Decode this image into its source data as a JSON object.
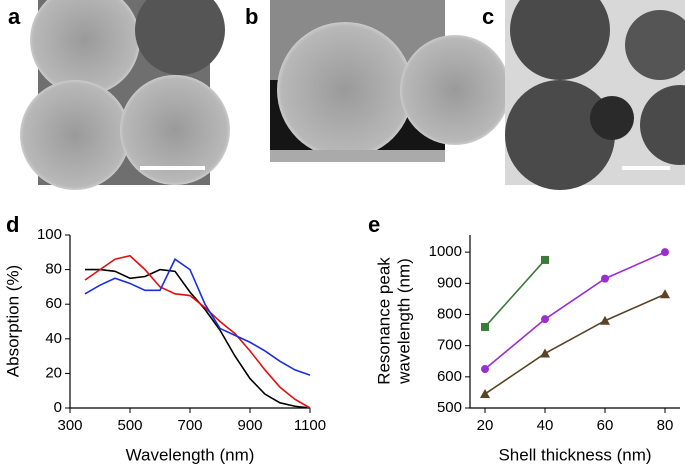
{
  "panels": [
    "a",
    "b",
    "c",
    "d",
    "e"
  ],
  "chart_data": [
    {
      "type": "line",
      "xlabel": "Wavelength (nm)",
      "ylabel": [
        "Absorption (%)"
      ],
      "x": [
        350,
        400,
        450,
        500,
        550,
        600,
        650,
        700,
        750,
        800,
        850,
        900,
        950,
        1000,
        1050,
        1100
      ],
      "series": [
        {
          "color": "#000000",
          "values": [
            80,
            80,
            79,
            75,
            76,
            80,
            79,
            67,
            57,
            45,
            30,
            17,
            8,
            3,
            1,
            0
          ]
        },
        {
          "color": "#e01010",
          "values": [
            74,
            80,
            86,
            88,
            80,
            70,
            66,
            65,
            58,
            50,
            43,
            33,
            22,
            12,
            5,
            0
          ]
        },
        {
          "color": "#1a2ee0",
          "values": [
            66,
            71,
            75,
            72,
            68,
            68,
            86,
            80,
            60,
            46,
            42,
            38,
            33,
            27,
            22,
            19
          ]
        }
      ],
      "xlim": [
        300,
        1100
      ],
      "ylim": [
        0,
        100
      ],
      "xticks": [
        300,
        500,
        700,
        900,
        1100
      ],
      "yticks": [
        0,
        20,
        40,
        60,
        80,
        100
      ]
    },
    {
      "type": "line",
      "xlabel": "Shell thickness (nm)",
      "ylabel": [
        "Resonance peak",
        "wavelength (nm)"
      ],
      "x": [
        20,
        40,
        60,
        80
      ],
      "series": [
        {
          "color": "#3b7a3b",
          "marker": "square",
          "values": [
            760,
            975,
            null,
            null
          ]
        },
        {
          "color": "#9b2fd0",
          "marker": "circle",
          "values": [
            625,
            785,
            915,
            1000
          ]
        },
        {
          "color": "#5a4327",
          "marker": "triangle",
          "values": [
            545,
            675,
            780,
            865
          ]
        }
      ],
      "xlim": [
        15,
        85
      ],
      "ylim": [
        500,
        1055
      ],
      "xticks": [
        20,
        40,
        60,
        80
      ],
      "yticks": [
        500,
        600,
        700,
        800,
        900,
        1000
      ]
    }
  ]
}
